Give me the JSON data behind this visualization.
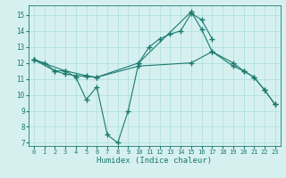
{
  "line1_x": [
    0,
    1,
    2,
    3,
    4,
    5,
    6,
    7,
    8,
    9,
    10,
    11,
    12,
    13,
    14,
    15,
    16,
    17
  ],
  "line1_y": [
    12.2,
    12.0,
    11.5,
    11.5,
    11.1,
    9.7,
    10.5,
    7.5,
    7.0,
    9.0,
    12.0,
    13.0,
    13.5,
    13.8,
    14.0,
    15.1,
    14.7,
    13.5
  ],
  "line2_x": [
    0,
    2,
    3,
    4,
    5,
    6,
    10,
    15,
    16,
    17,
    19,
    20,
    21,
    22,
    23
  ],
  "line2_y": [
    12.2,
    11.5,
    11.3,
    11.2,
    11.15,
    11.1,
    12.0,
    15.2,
    14.1,
    12.7,
    12.0,
    11.5,
    11.1,
    10.3,
    9.4
  ],
  "line3_x": [
    0,
    3,
    5,
    6,
    10,
    15,
    17,
    19,
    20,
    21,
    22,
    23
  ],
  "line3_y": [
    12.2,
    11.5,
    11.2,
    11.1,
    11.8,
    12.0,
    12.7,
    11.8,
    11.5,
    11.1,
    10.3,
    9.4
  ],
  "color": "#1a7a6e",
  "bg_color": "#d6f0f0",
  "grid_color": "#aadddd",
  "xlabel": "Humidex (Indice chaleur)",
  "xlim": [
    -0.5,
    23.5
  ],
  "ylim": [
    6.8,
    15.6
  ],
  "yticks": [
    7,
    8,
    9,
    10,
    11,
    12,
    13,
    14,
    15
  ],
  "xticks": [
    0,
    1,
    2,
    3,
    4,
    5,
    6,
    7,
    8,
    9,
    10,
    11,
    12,
    13,
    14,
    15,
    16,
    17,
    18,
    19,
    20,
    21,
    22,
    23
  ]
}
